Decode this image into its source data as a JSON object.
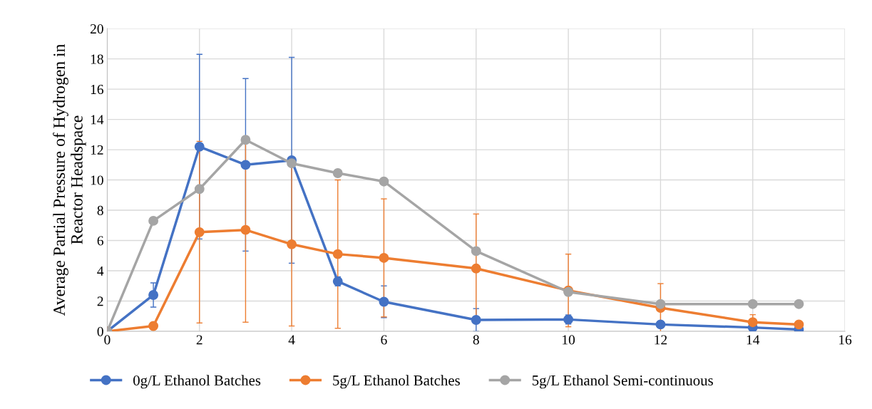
{
  "chart_data": {
    "type": "line",
    "ylabel": "Average Partial Pressure of Hydrogen in\nReactor Headspace",
    "x": [
      0,
      1,
      2,
      3,
      4,
      5,
      6,
      8,
      10,
      12,
      14,
      15
    ],
    "series": [
      {
        "name": "0g/L Ethanol Batches",
        "color": "#4472c4",
        "values": [
          0,
          2.4,
          12.2,
          11.0,
          11.3,
          3.3,
          1.95,
          0.75,
          0.78,
          0.45,
          0.25,
          0.12
        ],
        "errors": [
          null,
          0.8,
          6.1,
          5.7,
          6.8,
          0.3,
          1.05,
          0.75,
          0.3,
          null,
          null,
          null
        ]
      },
      {
        "name": "5g/L Ethanol Batches",
        "color": "#ed7d31",
        "values": [
          0,
          0.35,
          6.55,
          6.7,
          5.75,
          5.1,
          4.85,
          4.15,
          2.7,
          1.55,
          0.6,
          0.45
        ],
        "errors": [
          null,
          null,
          6.0,
          6.1,
          5.4,
          4.9,
          3.9,
          3.6,
          2.4,
          1.6,
          0.5,
          null
        ]
      },
      {
        "name": "5g/L Ethanol Semi-continuous",
        "color": "#a5a5a5",
        "values": [
          0,
          7.3,
          9.4,
          12.65,
          11.1,
          10.45,
          9.9,
          5.3,
          2.6,
          1.8,
          1.8,
          1.8
        ]
      }
    ],
    "xlim": [
      0,
      16
    ],
    "xticks": [
      0,
      2,
      4,
      6,
      8,
      10,
      12,
      14,
      16
    ],
    "ylim": [
      0,
      20
    ],
    "yticks": [
      0,
      2,
      4,
      6,
      8,
      10,
      12,
      14,
      16,
      18,
      20
    ],
    "grid": true,
    "legend": "bottom",
    "marker": "circle",
    "line_style": "solid"
  }
}
